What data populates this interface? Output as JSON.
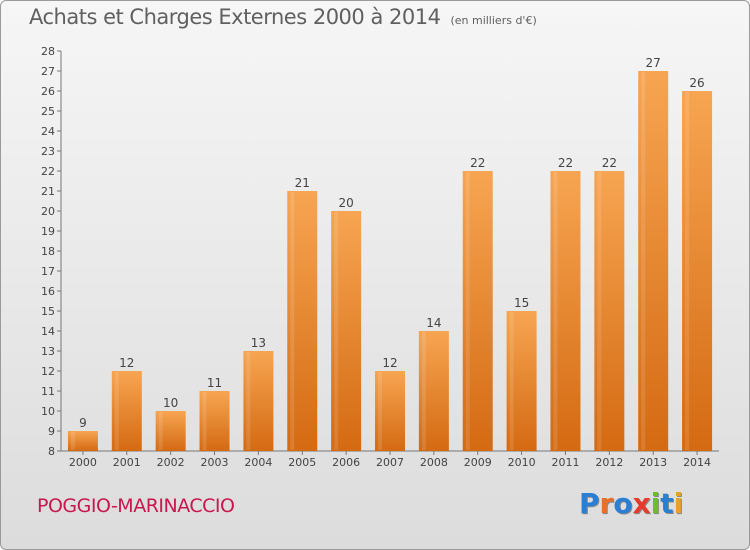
{
  "title": "Achats et Charges Externes 2000 à 2014",
  "subtitle": "(en milliers d'€)",
  "footer": {
    "location": "POGGIO-MARINACCIO"
  },
  "logo": {
    "letters": [
      {
        "char": "P",
        "color": "#2a7fd4"
      },
      {
        "char": "r",
        "color": "#e8702a"
      },
      {
        "char": "o",
        "color": "#2a7fd4"
      },
      {
        "char": "x",
        "color": "#e83a2a"
      },
      {
        "char": "i",
        "color": "#6abf2a"
      },
      {
        "char": "t",
        "color": "#2a7fd4"
      },
      {
        "char": "i",
        "color": "#e8a02a"
      }
    ]
  },
  "chart_data": {
    "type": "bar",
    "categories": [
      "2000",
      "2001",
      "2002",
      "2003",
      "2004",
      "2005",
      "2006",
      "2007",
      "2008",
      "2009",
      "2010",
      "2011",
      "2012",
      "2013",
      "2014"
    ],
    "values": [
      9,
      12,
      10,
      11,
      13,
      21,
      20,
      12,
      14,
      22,
      15,
      22,
      22,
      27,
      26
    ],
    "title": "Achats et Charges Externes 2000 à 2014",
    "subtitle": "(en milliers d'€)",
    "xlabel": "",
    "ylabel": "",
    "ylim": [
      8,
      28
    ],
    "ytick_step": 1,
    "grid": false,
    "bar_color_top": "#f7a552",
    "bar_color_bottom": "#d46a12"
  }
}
